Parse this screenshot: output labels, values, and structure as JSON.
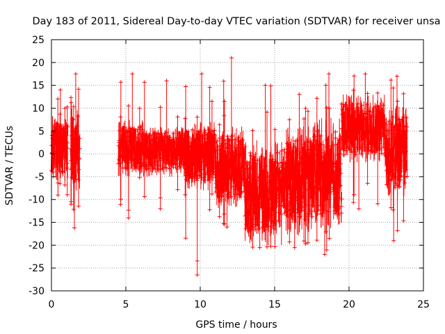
{
  "chart_data": {
    "type": "scatter",
    "title": "Day 183 of 2011, Sidereal Day-to-day VTEC variation (SDTVAR) for receiver unsa",
    "xlabel": "GPS time / hours",
    "ylabel": "SDTVAR / TECUs",
    "xlim": [
      0,
      25
    ],
    "ylim": [
      -30,
      25
    ],
    "xticks": [
      0,
      5,
      10,
      15,
      20,
      25
    ],
    "yticks": [
      -30,
      -25,
      -20,
      -15,
      -10,
      -5,
      0,
      5,
      10,
      15,
      20,
      25
    ],
    "grid": true,
    "marker": "+",
    "series_color": "#ff0000",
    "series": [
      {
        "name": "SDTVAR",
        "segments": [
          {
            "x_start": 0.0,
            "x_end": 1.1,
            "mean": 1.5,
            "upper": 8.5,
            "lower": -6.0,
            "max_outlier": 14.0,
            "min_outlier": -9.0
          },
          {
            "x_start": 1.3,
            "x_end": 1.9,
            "mean": 3.0,
            "upper": 10.0,
            "lower": -9.0,
            "max_outlier": 17.5,
            "min_outlier": -16.2
          },
          {
            "x_start": 4.5,
            "x_end": 6.2,
            "mean": 1.5,
            "upper": 7.5,
            "lower": -5.0,
            "max_outlier": 17.5,
            "min_outlier": -14.0
          },
          {
            "x_start": 6.2,
            "x_end": 9.0,
            "mean": 1.0,
            "upper": 6.0,
            "lower": -5.0,
            "max_outlier": 16.0,
            "min_outlier": -12.0
          },
          {
            "x_start": 9.0,
            "x_end": 11.0,
            "mean": 0.5,
            "upper": 7.0,
            "lower": -8.0,
            "max_outlier": 17.5,
            "min_outlier": -26.5
          },
          {
            "x_start": 11.0,
            "x_end": 13.0,
            "mean": -2.0,
            "upper": 6.0,
            "lower": -12.0,
            "max_outlier": 21.0,
            "min_outlier": -16.0
          },
          {
            "x_start": 13.0,
            "x_end": 15.5,
            "mean": -8.0,
            "upper": 3.0,
            "lower": -20.0,
            "max_outlier": 15.0,
            "min_outlier": -20.5
          },
          {
            "x_start": 15.5,
            "x_end": 17.6,
            "mean": -6.0,
            "upper": 6.0,
            "lower": -18.0,
            "max_outlier": 13.0,
            "min_outlier": -20.5
          },
          {
            "x_start": 17.6,
            "x_end": 19.5,
            "mean": -4.0,
            "upper": 8.0,
            "lower": -17.0,
            "max_outlier": 17.5,
            "min_outlier": -22.0
          },
          {
            "x_start": 19.5,
            "x_end": 22.4,
            "mean": 5.0,
            "upper": 13.0,
            "lower": -2.0,
            "max_outlier": 17.5,
            "min_outlier": -12.0
          },
          {
            "x_start": 22.4,
            "x_end": 23.9,
            "mean": 0.0,
            "upper": 11.0,
            "lower": -10.0,
            "max_outlier": 17.0,
            "min_outlier": -19.0
          }
        ]
      }
    ]
  }
}
